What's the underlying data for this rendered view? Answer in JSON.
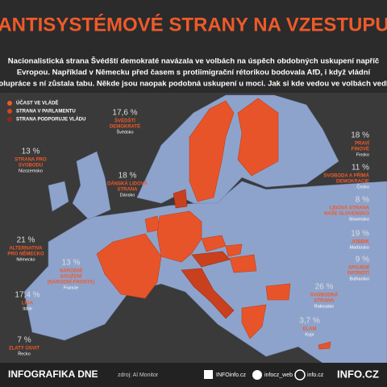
{
  "header": {
    "title": "ANTISYSTÉMOVÉ STRANY NA VZESTUPU",
    "intro": [
      "Nacionalistická strana Švédští demokraté navázala ve volbách na úspěch obdobných uskupení napříč",
      "Evropou. Například v Německu před časem s protiimigrační rétorikou bodovala AfD, i když vládní",
      "spolupráce s ní zůstala tabu. Někde jsou naopak podobná uskupení u moci. Jak si kde vedou ve volbách vedla?"
    ]
  },
  "legend": [
    "ÚČAST VE VLÁDĚ",
    "STRANA V PARLAMENTU",
    "STRANA PODPORUJE VLÁDU"
  ],
  "parties": [
    {
      "share": "17,6 %",
      "party": [
        "ŠVÉDŠTÍ",
        "DEMOKRATÉ"
      ],
      "country": "Švédsko"
    },
    {
      "share": "13 %",
      "party": [
        "STRANA PRO",
        "SVOBODU"
      ],
      "country": "Nizozemsko"
    },
    {
      "share": "18 %",
      "party": [
        "DÁNSKÁ LIDOVÁ",
        "STRANA"
      ],
      "country": "Dánsko"
    },
    {
      "share": "18 %",
      "party": [
        "PRAVÍ",
        "FINOVÉ"
      ],
      "country": "Finsko"
    },
    {
      "share": "11 %",
      "party": [
        "SVOBODA A PŘÍMÁ",
        "DEMOKRACIE"
      ],
      "country": "Česko"
    },
    {
      "share": "8 %",
      "party": [
        "LIDOVÁ STRANA",
        "NAŠE SLOVENSKO"
      ],
      "country": "Slovensko"
    },
    {
      "share": "19 %",
      "party": [
        "JOBBIK"
      ],
      "country": "Maďarsko"
    },
    {
      "share": "9 %",
      "party": [
        "SPOJENÍ",
        "PATRIOTI"
      ],
      "country": "Bulharsko"
    },
    {
      "share": "21 %",
      "party": [
        "ALTERNATIVA",
        "PRO NĚMECKO"
      ],
      "country": "Německo"
    },
    {
      "share": "13 %",
      "party": [
        "NÁRODNÍ",
        "SOUŽENÍ",
        "(NÁRODNÍ FRONTA)"
      ],
      "country": "Francie"
    },
    {
      "share": "17,4 %",
      "party": [
        "LIGA"
      ],
      "country": "Itálie"
    },
    {
      "share": "26 %",
      "party": [
        "SVOBODNÁ",
        "STRANA"
      ],
      "country": "Rakousko"
    },
    {
      "share": "3,7 %",
      "party": [
        "ELAM"
      ],
      "country": "Kypr"
    },
    {
      "share": "7 %",
      "party": [
        "ZLATÝ ÚSVIT"
      ],
      "country": "Řecko"
    }
  ],
  "footer": {
    "label": "INFOGRAFIKA DNE",
    "source": "zdroj: Al Monitor",
    "facebook": "INFOinfo.cz",
    "twitter": "infocz_web",
    "instagram": "info.cz",
    "logo": "INFO.CZ"
  }
}
